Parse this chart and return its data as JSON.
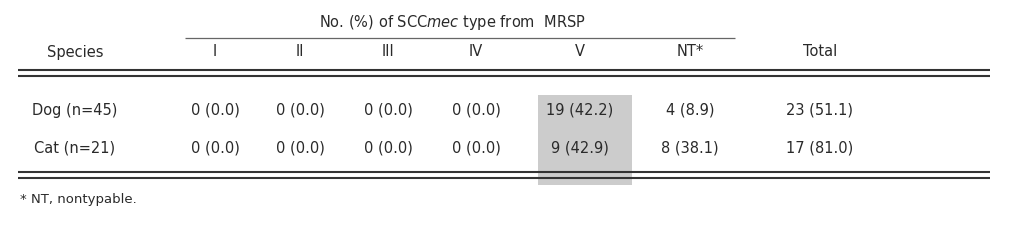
{
  "col_species": "Species",
  "col_total": "Total",
  "sub_headers": [
    "I",
    "II",
    "III",
    "IV",
    "V",
    "NT*"
  ],
  "rows": [
    {
      "species": "Dog (n=45)",
      "values": [
        "0 (0.0)",
        "0 (0.0)",
        "0 (0.0)",
        "0 (0.0)",
        "19 (42.2)",
        "4 (8.9)",
        "23 (51.1)"
      ]
    },
    {
      "species": "Cat (n=21)",
      "values": [
        "0 (0.0)",
        "0 (0.0)",
        "0 (0.0)",
        "0 (0.0)",
        "9 (42.9)",
        "8 (38.1)",
        "17 (81.0)"
      ]
    }
  ],
  "footnote": "* NT, nontypable.",
  "highlight_color": "#cccccc",
  "bg_color": "#ffffff",
  "text_color": "#2a2a2a",
  "font_size": 10.5
}
